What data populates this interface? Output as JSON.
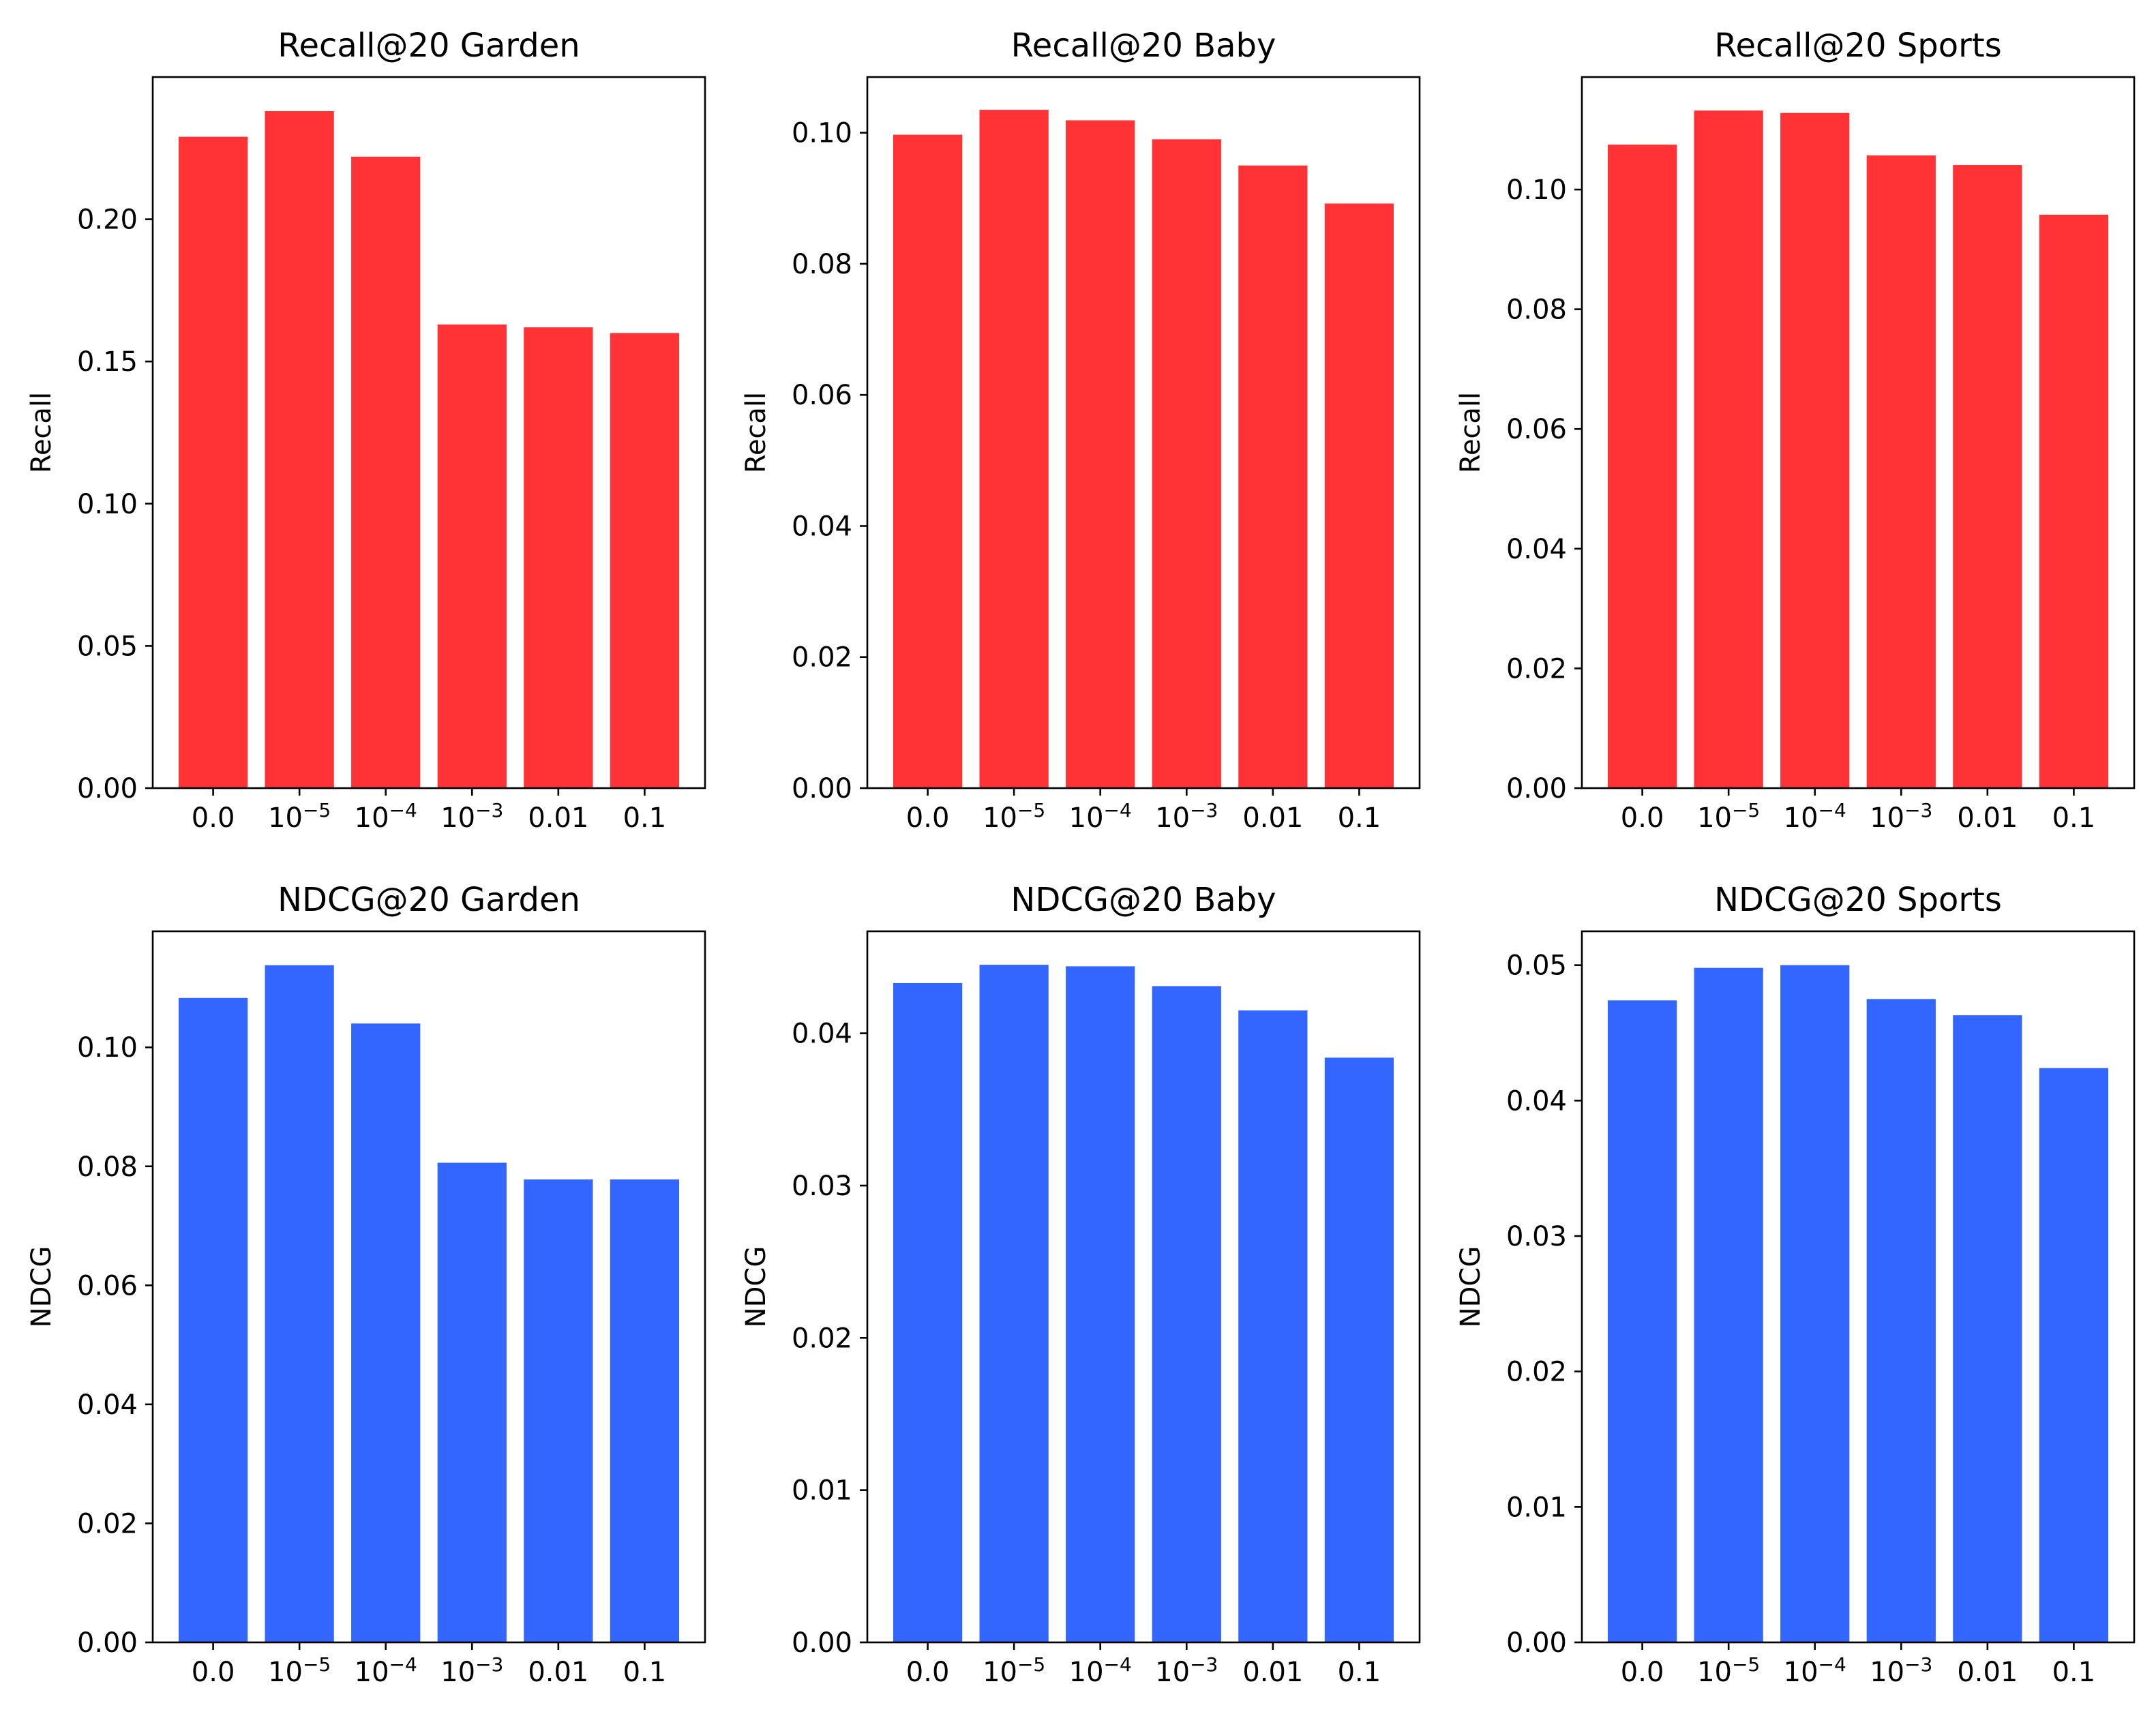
{
  "bar_colors": {
    "recall": "#ff3236",
    "ndcg": "#3366ff"
  },
  "categories": [
    {
      "base": "0.0",
      "exp": ""
    },
    {
      "base": "10",
      "exp": "−5"
    },
    {
      "base": "10",
      "exp": "−4"
    },
    {
      "base": "10",
      "exp": "−3"
    },
    {
      "base": "0.01",
      "exp": ""
    },
    {
      "base": "0.1",
      "exp": ""
    }
  ],
  "chart_data": [
    {
      "type": "bar",
      "title": "Recall@20 Garden",
      "xlabel": "",
      "ylabel": "Recall",
      "values": [
        0.229,
        0.238,
        0.222,
        0.163,
        0.162,
        0.16
      ],
      "ylim": [
        0,
        0.25
      ],
      "yticks": [
        "0.00",
        "0.05",
        "0.10",
        "0.15",
        "0.20"
      ],
      "color_key": "recall"
    },
    {
      "type": "bar",
      "title": "Recall@20 Baby",
      "xlabel": "",
      "ylabel": "Recall",
      "values": [
        0.0997,
        0.1035,
        0.1019,
        0.099,
        0.095,
        0.0892
      ],
      "ylim": [
        0,
        0.1085
      ],
      "yticks": [
        "0.00",
        "0.02",
        "0.04",
        "0.06",
        "0.08",
        "0.10"
      ],
      "color_key": "recall"
    },
    {
      "type": "bar",
      "title": "Recall@20 Sports",
      "xlabel": "",
      "ylabel": "Recall",
      "values": [
        0.1075,
        0.1132,
        0.1128,
        0.1057,
        0.1041,
        0.0958
      ],
      "ylim": [
        0,
        0.1188
      ],
      "yticks": [
        "0.00",
        "0.02",
        "0.04",
        "0.06",
        "0.08",
        "0.10"
      ],
      "color_key": "recall"
    },
    {
      "type": "bar",
      "title": "NDCG@20 Garden",
      "xlabel": "",
      "ylabel": "NDCG",
      "values": [
        0.1083,
        0.1138,
        0.104,
        0.0806,
        0.0778,
        0.0778
      ],
      "ylim": [
        0,
        0.1195
      ],
      "yticks": [
        "0.00",
        "0.02",
        "0.04",
        "0.06",
        "0.08",
        "0.10"
      ],
      "color_key": "ndcg"
    },
    {
      "type": "bar",
      "title": "NDCG@20 Baby",
      "xlabel": "",
      "ylabel": "NDCG",
      "values": [
        0.0433,
        0.0445,
        0.0444,
        0.0431,
        0.0415,
        0.0384
      ],
      "ylim": [
        0,
        0.0467
      ],
      "yticks": [
        "0.00",
        "0.01",
        "0.02",
        "0.03",
        "0.04"
      ],
      "color_key": "ndcg"
    },
    {
      "type": "bar",
      "title": "NDCG@20 Sports",
      "xlabel": "",
      "ylabel": "NDCG",
      "values": [
        0.0474,
        0.0498,
        0.05,
        0.0475,
        0.0463,
        0.0424
      ],
      "ylim": [
        0,
        0.0525
      ],
      "yticks": [
        "0.00",
        "0.01",
        "0.02",
        "0.03",
        "0.04",
        "0.05"
      ],
      "color_key": "ndcg"
    }
  ]
}
